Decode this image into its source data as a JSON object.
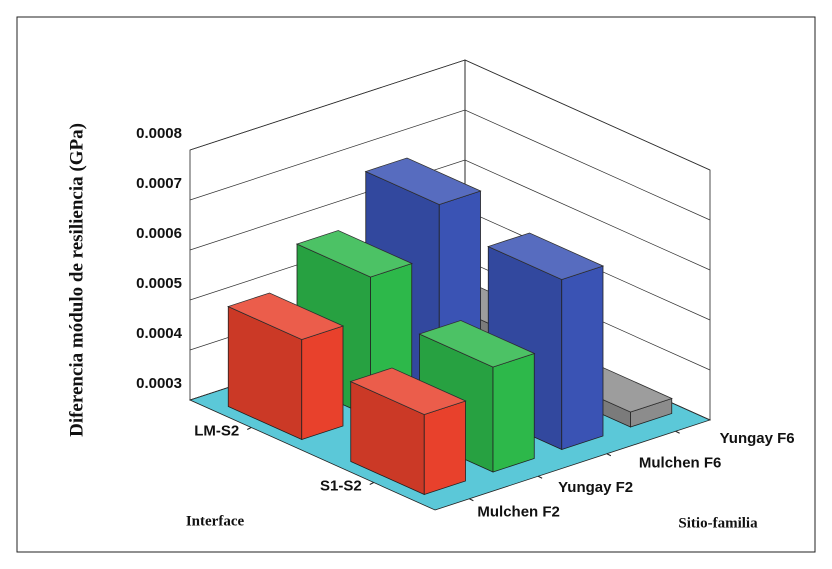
{
  "chart_data": {
    "type": "bar3d",
    "ylabel": "Diferencia módulo de resiliencia (GPa)",
    "xlabel": "Sitio-familia",
    "zlabel": "Interface",
    "categories": [
      "Mulchen F2",
      "Yungay F2",
      "Mulchen F6",
      "Yungay F6"
    ],
    "colors": [
      "#e8412c",
      "#2db84a",
      "#3a53b4",
      "#8c8c8c"
    ],
    "series": [
      {
        "name": "S1-S2",
        "values": [
          0.00046,
          0.00051,
          0.00064,
          0.00033
        ]
      },
      {
        "name": "LM-S2",
        "values": [
          0.0005,
          0.00058,
          0.00068,
          0.00038
        ]
      }
    ],
    "ylim": [
      0.0003,
      0.0008
    ],
    "yticks": [
      0.0003,
      0.0004,
      0.0005,
      0.0006,
      0.0007,
      0.0008
    ],
    "floor_color": "#5bc8d8",
    "grid": true
  }
}
